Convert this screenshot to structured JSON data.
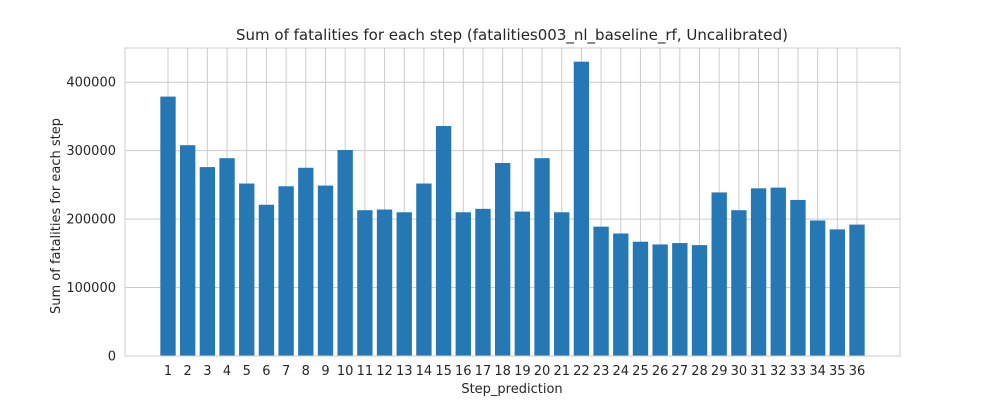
{
  "chart_data": {
    "type": "bar",
    "title": "Sum of fatalities for each step (fatalities003_nl_baseline_rf, Uncalibrated)",
    "xlabel": "Step_prediction",
    "ylabel": "Sum of fatalities for each step",
    "categories": [
      "1",
      "2",
      "3",
      "4",
      "5",
      "6",
      "7",
      "8",
      "9",
      "10",
      "11",
      "12",
      "13",
      "14",
      "15",
      "16",
      "17",
      "18",
      "19",
      "20",
      "21",
      "22",
      "23",
      "24",
      "25",
      "26",
      "27",
      "28",
      "29",
      "30",
      "31",
      "32",
      "33",
      "34",
      "35",
      "36"
    ],
    "values": [
      379000,
      308000,
      276000,
      289000,
      252000,
      221000,
      248000,
      275000,
      249000,
      301000,
      213000,
      214000,
      210000,
      252000,
      336000,
      210000,
      215000,
      282000,
      211000,
      289000,
      210000,
      430000,
      189000,
      179000,
      167000,
      163000,
      165000,
      162000,
      239000,
      213000,
      245000,
      246000,
      228000,
      198000,
      185000,
      192000
    ],
    "ylim": [
      0,
      450000
    ],
    "yticks": [
      0,
      100000,
      200000,
      300000,
      400000
    ],
    "ytick_labels": [
      "0",
      "100000",
      "200000",
      "300000",
      "400000"
    ],
    "grid": true,
    "bar_color": "#2678b4",
    "grid_color": "#cccccc",
    "frame_color": "#cccccc"
  }
}
